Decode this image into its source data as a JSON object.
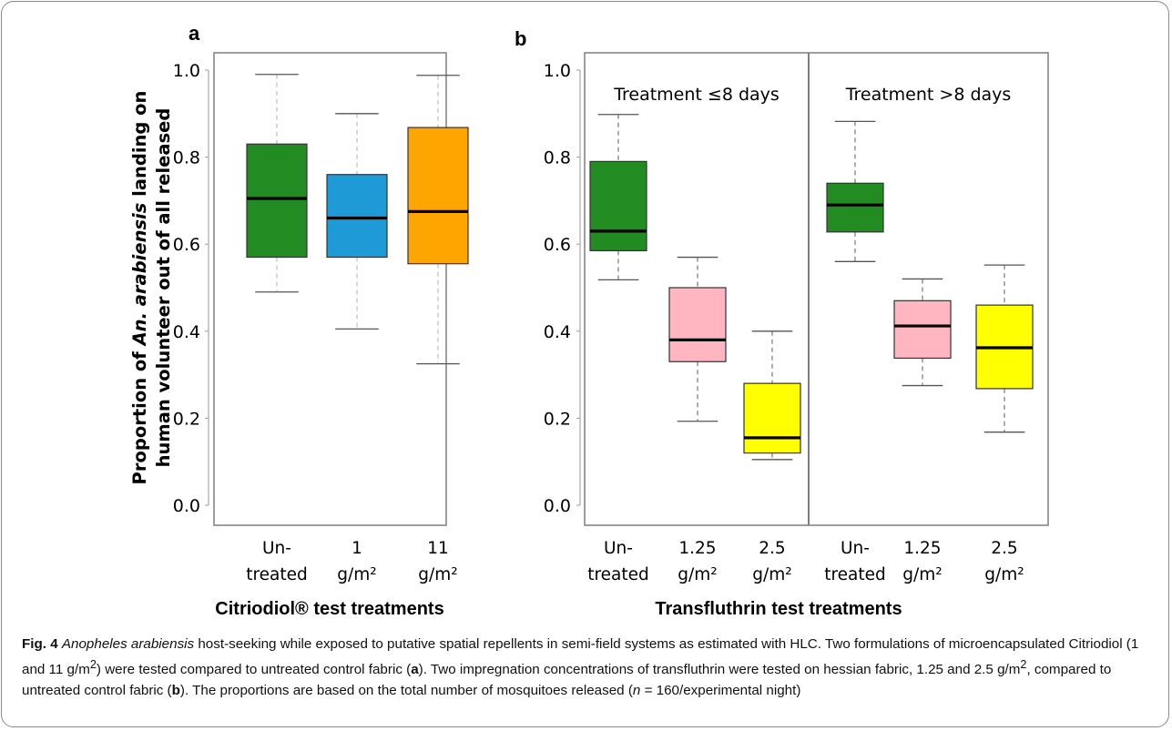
{
  "figure": {
    "panels": {
      "a": {
        "letter": "a",
        "group_title": "Citriodiol® test treatments",
        "xticks": [
          [
            "Un-",
            "treated"
          ],
          [
            "1",
            "g/m²"
          ],
          [
            "11",
            "g/m²"
          ]
        ]
      },
      "b": {
        "letter": "b",
        "group_title": "Transfluthrin test treatments",
        "section_labels": [
          "Treatment ≤8 days",
          "Treatment >8 days"
        ],
        "xticks": [
          [
            "Un-",
            "treated"
          ],
          [
            "1.25",
            "g/m²"
          ],
          [
            "2.5",
            "g/m²"
          ],
          [
            "Un-",
            "treated"
          ],
          [
            "1.25",
            "g/m²"
          ],
          [
            "2.5",
            "g/m²"
          ]
        ]
      }
    },
    "ylabel": {
      "line1_prefix": "Proportion of ",
      "line1_italic": "An. arabiensis",
      "line1_suffix": " landing on",
      "line2": "human volunteer out of all released"
    },
    "yticks": [
      "0.0",
      "0.2",
      "0.4",
      "0.6",
      "0.8",
      "1.0"
    ]
  },
  "chart_data": [
    {
      "panel": "a",
      "type": "boxplot",
      "ylim": [
        0,
        1
      ],
      "categories": [
        "Un-treated",
        "1 g/m²",
        "11 g/m²"
      ],
      "boxes": [
        {
          "category": "Un-treated",
          "color": "#228B22",
          "whisker_low": 0.49,
          "q1": 0.57,
          "median": 0.705,
          "q3": 0.83,
          "whisker_high": 0.99
        },
        {
          "category": "1 g/m²",
          "color": "#1E9BD7",
          "whisker_low": 0.405,
          "q1": 0.57,
          "median": 0.66,
          "q3": 0.76,
          "whisker_high": 0.9
        },
        {
          "category": "11 g/m²",
          "color": "#FFA500",
          "whisker_low": 0.325,
          "q1": 0.555,
          "median": 0.675,
          "q3": 0.868,
          "whisker_high": 0.988
        }
      ]
    },
    {
      "panel": "b",
      "type": "boxplot",
      "ylim": [
        0,
        1
      ],
      "sections": [
        "Treatment ≤8 days",
        "Treatment >8 days"
      ],
      "categories": [
        "Un-treated",
        "1.25 g/m²",
        "2.5 g/m²",
        "Un-treated",
        "1.25 g/m²",
        "2.5 g/m²"
      ],
      "boxes": [
        {
          "section": 0,
          "category": "Un-treated",
          "color": "#228B22",
          "whisker_low": 0.518,
          "q1": 0.585,
          "median": 0.63,
          "q3": 0.79,
          "whisker_high": 0.898
        },
        {
          "section": 0,
          "category": "1.25 g/m²",
          "color": "#FFB6C1",
          "whisker_low": 0.193,
          "q1": 0.33,
          "median": 0.38,
          "q3": 0.5,
          "whisker_high": 0.57
        },
        {
          "section": 0,
          "category": "2.5 g/m²",
          "color": "#FFFF00",
          "whisker_low": 0.105,
          "q1": 0.12,
          "median": 0.155,
          "q3": 0.28,
          "whisker_high": 0.4
        },
        {
          "section": 1,
          "category": "Un-treated",
          "color": "#228B22",
          "whisker_low": 0.56,
          "q1": 0.628,
          "median": 0.69,
          "q3": 0.74,
          "whisker_high": 0.882
        },
        {
          "section": 1,
          "category": "1.25 g/m²",
          "color": "#FFB6C1",
          "whisker_low": 0.275,
          "q1": 0.338,
          "median": 0.412,
          "q3": 0.47,
          "whisker_high": 0.52
        },
        {
          "section": 1,
          "category": "2.5 g/m²",
          "color": "#FFFF00",
          "whisker_low": 0.168,
          "q1": 0.268,
          "median": 0.362,
          "q3": 0.46,
          "whisker_high": 0.552
        }
      ]
    }
  ],
  "caption": {
    "fig_label": "Fig. 4",
    "species": "Anopheles arabiensis",
    "part1": " host-seeking while exposed to putative spatial repellents in semi-field systems as estimated with HLC. Two formulations of microencapsulated Citriodiol (1 and 11 g/m",
    "sup1": "2",
    "part2": ") were tested compared to untreated control fabric (",
    "bold_a": "a",
    "part3": "). Two impregnation concentrations of transfluthrin were tested on hessian fabric, 1.25 and 2.5 g/m",
    "sup2": "2",
    "part4": ", compared to untreated control fabric (",
    "bold_b": "b",
    "part5": "). The proportions are based on the total number of mosquitoes released (",
    "n_italic": "n",
    "part6": " = 160/experimental night)"
  }
}
